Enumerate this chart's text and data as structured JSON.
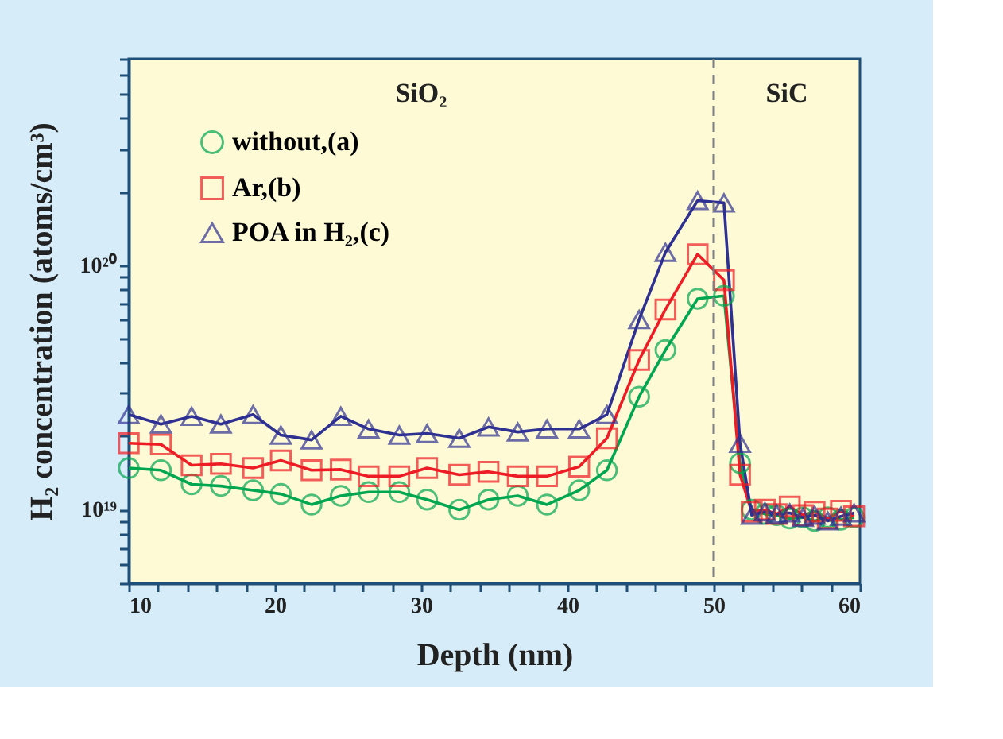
{
  "chart_data": {
    "type": "line",
    "xlabel": "Depth (nm)",
    "ylabel": "H₂ concentration (atoms/cm³)",
    "log": "y",
    "grid": false,
    "legend": "top left",
    "line_style": "solid",
    "xlim": [
      10,
      60
    ],
    "ylim": [
      5e+18,
      7e+20
    ],
    "xticks": [
      10,
      {
        "value": 12,
        "label": null
      },
      {
        "value": 14,
        "label": null
      },
      {
        "value": 16,
        "label": null
      },
      {
        "value": 18,
        "label": null
      },
      20,
      {
        "value": 22,
        "label": null
      },
      {
        "value": 24,
        "label": null
      },
      {
        "value": 26,
        "label": null
      },
      {
        "value": 28,
        "label": null
      },
      30,
      {
        "value": 32,
        "label": null
      },
      {
        "value": 34,
        "label": null
      },
      {
        "value": 36,
        "label": null
      },
      {
        "value": 38,
        "label": null
      },
      40,
      {
        "value": 42,
        "label": null
      },
      {
        "value": 44,
        "label": null
      },
      {
        "value": 46,
        "label": null
      },
      {
        "value": 48,
        "label": null
      },
      50,
      {
        "value": 52,
        "label": null
      },
      {
        "value": 54,
        "label": null
      },
      {
        "value": 56,
        "label": null
      },
      {
        "value": 58,
        "label": null
      },
      60
    ],
    "yticks": [
      {
        "value": 5e+18,
        "label": null
      },
      {
        "value": 6e+18,
        "label": null
      },
      {
        "value": 7e+18,
        "label": null
      },
      {
        "value": 8e+18,
        "label": null
      },
      {
        "value": 9e+18,
        "label": null
      },
      {
        "value": 1e+19,
        "label": "10¹⁹"
      },
      {
        "value": 2e+19,
        "label": null
      },
      {
        "value": 3e+19,
        "label": null
      },
      {
        "value": 4e+19,
        "label": null
      },
      {
        "value": 5e+19,
        "label": null
      },
      {
        "value": 6e+19,
        "label": null
      },
      {
        "value": 7e+19,
        "label": null
      },
      {
        "value": 8e+19,
        "label": null
      },
      {
        "value": 9e+19,
        "label": null
      },
      {
        "value": 1e+20,
        "label": "10²⁰"
      },
      {
        "value": 2e+20,
        "label": null
      },
      {
        "value": 3e+20,
        "label": null
      },
      {
        "value": 4e+20,
        "label": null
      },
      {
        "value": 5e+20,
        "label": null
      },
      {
        "value": 6e+20,
        "label": null
      },
      {
        "value": 7e+20,
        "label": null
      }
    ],
    "ref_lines": [
      {
        "axis": "x",
        "value": 50,
        "label": null,
        "color": "#7f7f7f",
        "line_style": "dashed"
      }
    ],
    "annotations": [
      "SiO₂",
      "SiC"
    ],
    "series": [
      {
        "name": "without,(a)",
        "color": "#00a650",
        "marker": "circle",
        "x": [
          10,
          12.2,
          14.3,
          16.3,
          18.5,
          20.4,
          22.5,
          24.5,
          26.4,
          28.5,
          30.4,
          32.6,
          34.6,
          36.6,
          38.6,
          40.8,
          42.7,
          44.9,
          46.7,
          48.9,
          50.7,
          51.8,
          52.6,
          53.5,
          54.3,
          55.2,
          56.1,
          56.9,
          57.8,
          58.7,
          59.6
        ],
        "values": [
          1.48e+19,
          1.45e+19,
          1.27e+19,
          1.25e+19,
          1.2e+19,
          1.16e+19,
          1.05e+19,
          1.14e+19,
          1.18e+19,
          1.18e+19,
          1.1e+19,
          1e+19,
          1.1e+19,
          1.14e+19,
          1.05e+19,
          1.2e+19,
          1.45e+19,
          2.9e+19,
          4.5e+19,
          7.3e+19,
          7.5e+19,
          1.55e+19,
          1e+19,
          9.6e+18,
          9.5e+18,
          9.2e+18,
          9.3e+18,
          9e+18,
          9.3e+18,
          9.1e+18,
          9.3e+18
        ]
      },
      {
        "name": "Ar,(b)",
        "color": "#ee1c24",
        "marker": "square",
        "x": [
          10,
          12.2,
          14.3,
          16.3,
          18.5,
          20.4,
          22.5,
          24.5,
          26.4,
          28.5,
          30.4,
          32.6,
          34.6,
          36.6,
          38.6,
          40.8,
          42.7,
          44.9,
          46.7,
          48.9,
          50.7,
          51.8,
          52.6,
          53.5,
          54.3,
          55.2,
          56.1,
          56.9,
          57.8,
          58.7,
          59.6
        ],
        "values": [
          1.87e+19,
          1.85e+19,
          1.52e+19,
          1.54e+19,
          1.48e+19,
          1.59e+19,
          1.45e+19,
          1.46e+19,
          1.37e+19,
          1.37e+19,
          1.48e+19,
          1.39e+19,
          1.43e+19,
          1.37e+19,
          1.37e+19,
          1.5e+19,
          1.96e+19,
          4.1e+19,
          6.6e+19,
          1.11e+20,
          8.7e+19,
          1.39e+19,
          9.8e+18,
          1e+19,
          9.6e+18,
          1.03e+19,
          9.5e+18,
          9.8e+18,
          9.2e+18,
          9.9e+18,
          9.4e+18
        ]
      },
      {
        "name": "POA in H₂,(c)",
        "color": "#2e3192",
        "marker": "triangle",
        "x": [
          10,
          12.2,
          14.3,
          16.3,
          18.5,
          20.4,
          22.5,
          24.5,
          26.4,
          28.5,
          30.4,
          32.6,
          34.6,
          36.6,
          38.6,
          40.8,
          42.7,
          44.9,
          46.7,
          48.9,
          50.7,
          51.8,
          52.6,
          53.5,
          54.3,
          55.2,
          56.1,
          56.9,
          57.8,
          58.7,
          59.6
        ],
        "values": [
          2.45e+19,
          2.24e+19,
          2.41e+19,
          2.24e+19,
          2.45e+19,
          2.02e+19,
          1.93e+19,
          2.41e+19,
          2.14e+19,
          2.02e+19,
          2.05e+19,
          1.96e+19,
          2.18e+19,
          2.08e+19,
          2.14e+19,
          2.14e+19,
          2.45e+19,
          6e+19,
          1.13e+20,
          1.84e+20,
          1.8e+20,
          1.87e+19,
          9.5e+18,
          9.8e+18,
          9.6e+18,
          9.7e+18,
          9.3e+18,
          9.5e+18,
          9e+18,
          9.4e+18,
          9.7e+18
        ]
      }
    ]
  }
}
